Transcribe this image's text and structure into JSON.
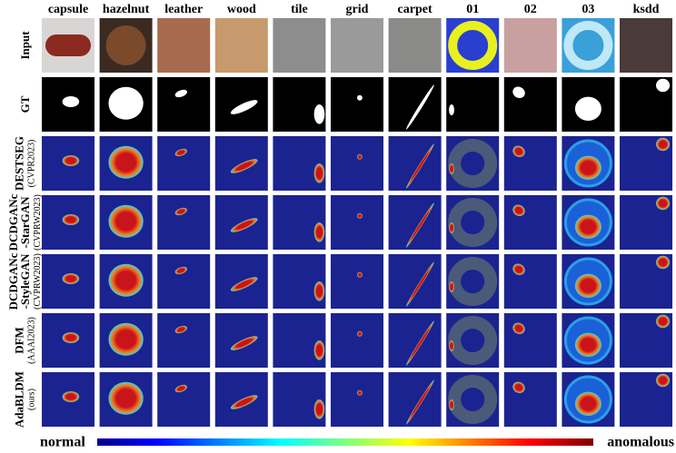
{
  "columns": [
    "capsule",
    "hazelnut",
    "leather",
    "wood",
    "tile",
    "grid",
    "carpet",
    "01",
    "02",
    "03",
    "ksdd"
  ],
  "rows": [
    {
      "lines": [
        "Input"
      ]
    },
    {
      "lines": [
        "GT"
      ]
    },
    {
      "lines": [
        "DESTSEG"
      ],
      "venue": "(CVPR2023)"
    },
    {
      "lines": [
        "DCDGANc",
        "-StarGAN"
      ],
      "venue": "(CVPRW2023)"
    },
    {
      "lines": [
        "DCDGANc",
        "-StyleGAN"
      ],
      "venue": "(CVPRW2023)"
    },
    {
      "lines": [
        "DFM"
      ],
      "venue": "(AAAI2023)"
    },
    {
      "lines": [
        "AdaBLDM"
      ],
      "venue": "(ours)"
    }
  ],
  "colorbar": {
    "low": "normal",
    "high": "anomalous"
  }
}
